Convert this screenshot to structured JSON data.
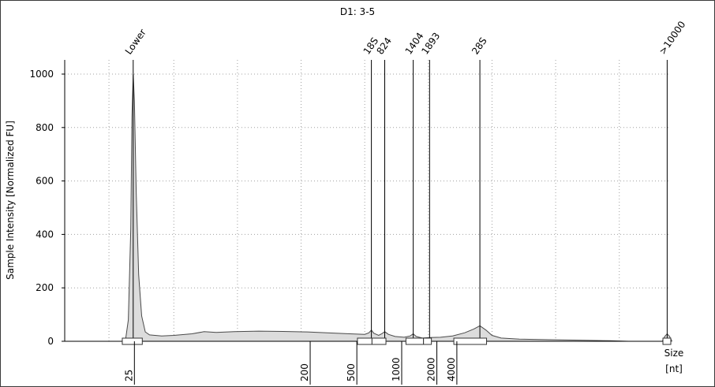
{
  "chart_data": {
    "type": "area",
    "title": "D1: 3-5",
    "ylabel": "Sample Intensity [Normalized FU]",
    "xlabel": "Size",
    "xunit": "[nt]",
    "ylim": [
      0,
      1000
    ],
    "yticks": [
      0,
      200,
      400,
      600,
      800,
      1000
    ],
    "xticks": [
      {
        "label": "25",
        "pos": 11.5
      },
      {
        "label": "200",
        "pos": 40.5
      },
      {
        "label": "500",
        "pos": 48.2
      },
      {
        "label": "1000",
        "pos": 55.6
      },
      {
        "label": "2000",
        "pos": 61.4
      },
      {
        "label": "4000",
        "pos": 64.7
      }
    ],
    "grid": true,
    "grid_x": [
      7.3,
      18.0,
      28.5,
      39.0,
      49.5,
      60.0,
      70.5,
      81.0,
      91.5
    ],
    "peaks": [
      {
        "label": "Lower",
        "pos": 11.3
      },
      {
        "label": "18S",
        "pos": 50.6
      },
      {
        "label": "824",
        "pos": 52.8
      },
      {
        "label": "1404",
        "pos": 57.5
      },
      {
        "label": "1893",
        "pos": 60.2
      },
      {
        "label": "28S",
        "pos": 68.5
      },
      {
        "label": ">10000",
        "pos": 99.4
      }
    ],
    "trace": [
      [
        10.0,
        0
      ],
      [
        10.5,
        80
      ],
      [
        10.9,
        420
      ],
      [
        11.1,
        840
      ],
      [
        11.3,
        1000
      ],
      [
        11.5,
        900
      ],
      [
        11.8,
        560
      ],
      [
        12.2,
        250
      ],
      [
        12.7,
        95
      ],
      [
        13.3,
        35
      ],
      [
        14.0,
        24
      ],
      [
        16.0,
        20
      ],
      [
        18.0,
        22
      ],
      [
        21.0,
        28
      ],
      [
        23.0,
        36
      ],
      [
        25.0,
        33
      ],
      [
        28.0,
        36
      ],
      [
        32.0,
        38
      ],
      [
        36.0,
        37
      ],
      [
        40.0,
        35
      ],
      [
        44.0,
        31
      ],
      [
        47.0,
        28
      ],
      [
        49.5,
        26
      ],
      [
        50.2,
        32
      ],
      [
        50.6,
        42
      ],
      [
        51.0,
        30
      ],
      [
        51.8,
        22
      ],
      [
        52.3,
        28
      ],
      [
        52.8,
        36
      ],
      [
        53.4,
        26
      ],
      [
        54.5,
        18
      ],
      [
        56.0,
        15
      ],
      [
        57.0,
        20
      ],
      [
        57.5,
        28
      ],
      [
        58.0,
        18
      ],
      [
        59.0,
        12
      ],
      [
        60.2,
        14
      ],
      [
        62.0,
        15
      ],
      [
        64.0,
        20
      ],
      [
        66.0,
        32
      ],
      [
        67.5,
        46
      ],
      [
        68.5,
        58
      ],
      [
        69.5,
        42
      ],
      [
        70.5,
        22
      ],
      [
        72.0,
        12
      ],
      [
        75.0,
        8
      ],
      [
        80.0,
        6
      ],
      [
        85.0,
        4
      ],
      [
        90.0,
        2
      ],
      [
        93.0,
        0
      ],
      [
        98.6,
        0
      ],
      [
        99.0,
        18
      ],
      [
        99.4,
        28
      ],
      [
        99.8,
        18
      ],
      [
        100.2,
        0
      ]
    ],
    "integration_bars": [
      [
        9.5,
        12.8
      ],
      [
        48.3,
        50.7
      ],
      [
        50.7,
        53.0
      ],
      [
        56.3,
        59.2
      ],
      [
        59.2,
        60.5
      ],
      [
        64.2,
        69.6
      ],
      [
        98.7,
        100.0
      ]
    ]
  }
}
